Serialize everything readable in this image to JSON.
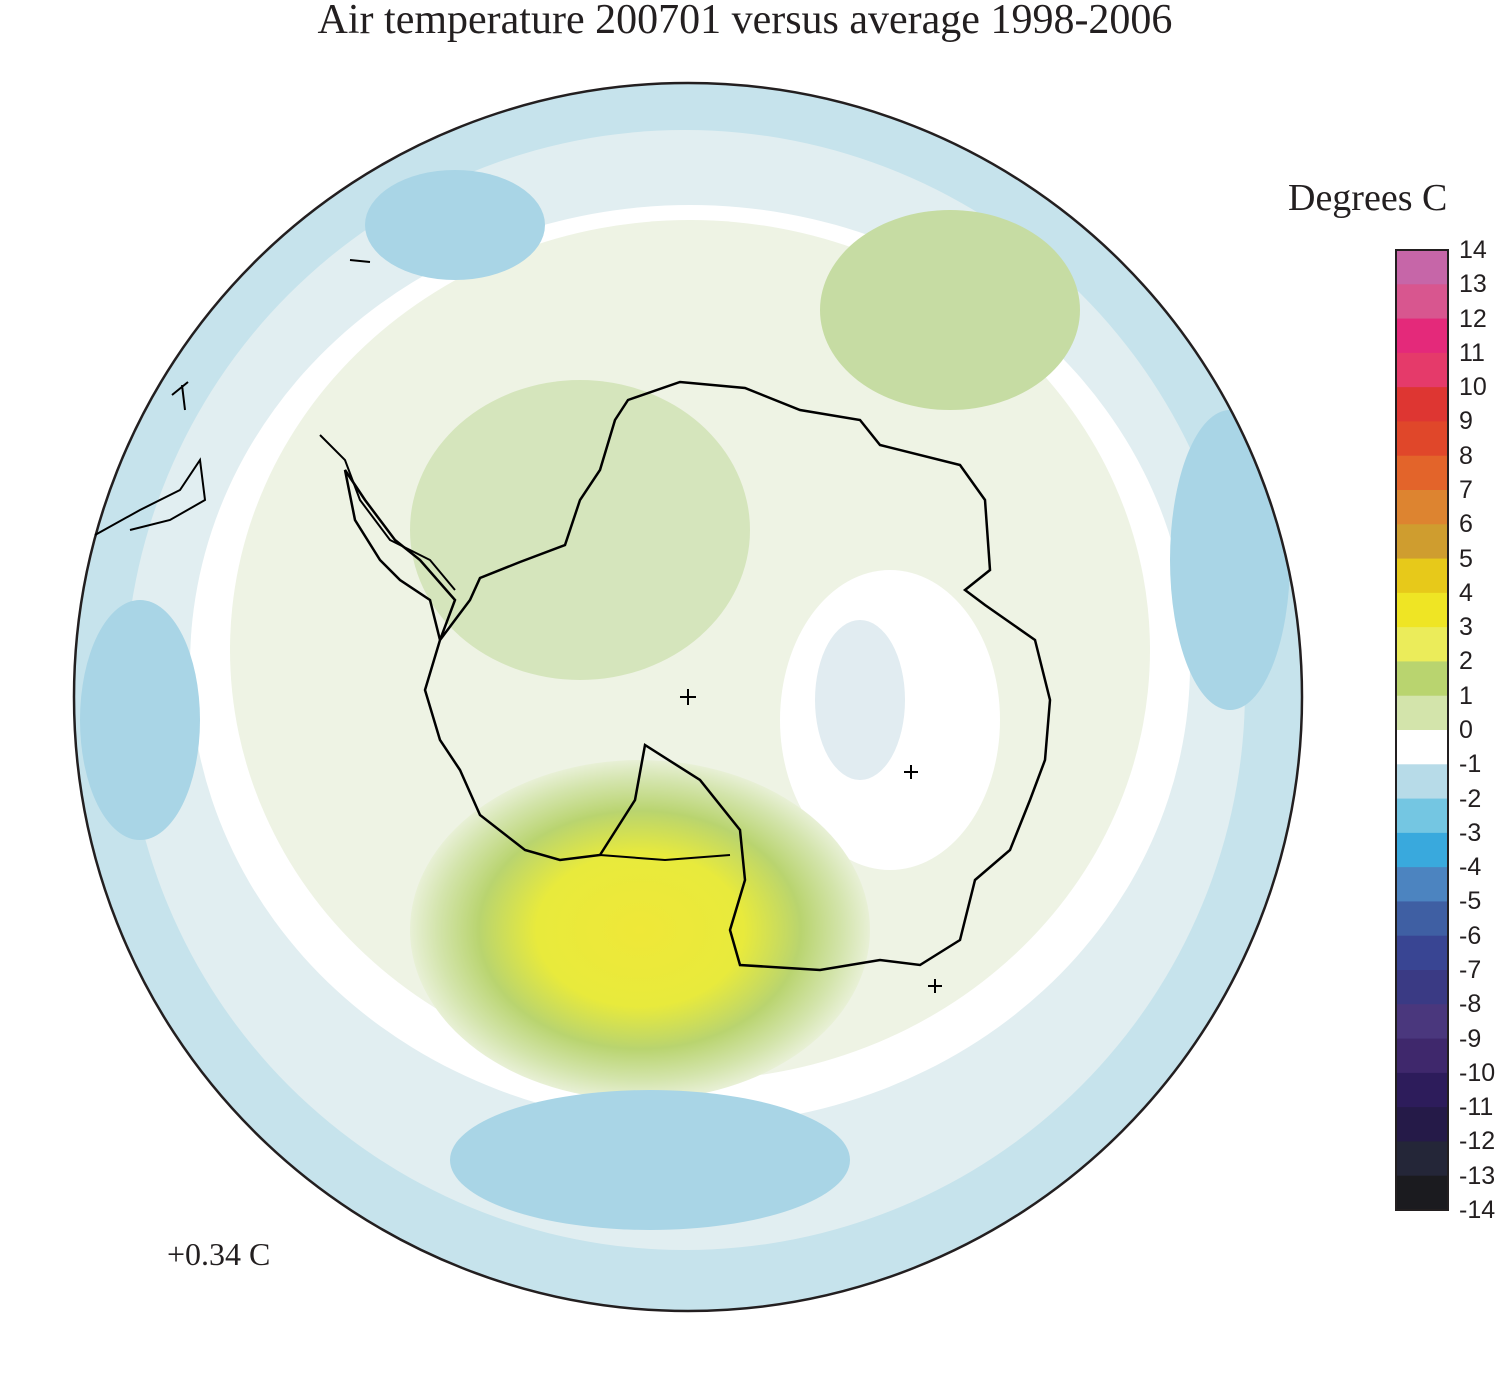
{
  "title": "Air temperature 200701 versus average 1998-2006",
  "legend": {
    "title": "Degrees C",
    "ticks": [
      "14",
      "13",
      "12",
      "11",
      "10",
      "9",
      "8",
      "7",
      "6",
      "5",
      "4",
      "3",
      "2",
      "1",
      "0",
      "-1",
      "-2",
      "-3",
      "-4",
      "-5",
      "-6",
      "-7",
      "-8",
      "-9",
      "-10",
      "-11",
      "-12",
      "-13",
      "-14"
    ],
    "colors": [
      "#c666a8",
      "#d8568f",
      "#e4297a",
      "#e53a6a",
      "#de3632",
      "#e0472a",
      "#e3642a",
      "#dd8430",
      "#cf9d2f",
      "#e7c91a",
      "#efe524",
      "#ebec5a",
      "#b9d46f",
      "#d3e4ab",
      "#ffffff",
      "#b7dbe8",
      "#74c6e2",
      "#39a9dd",
      "#4c84c0",
      "#3f5fa3",
      "#394593",
      "#3a3a84",
      "#4a377d",
      "#3f286c",
      "#2d1c5b",
      "#251a48",
      "#242638",
      "#1b1b1f"
    ]
  },
  "mean_anomaly": "+0.34 C",
  "map": {
    "projection": "south polar stereographic",
    "features": [
      "anomaly shading",
      "coastlines",
      "station markers"
    ]
  }
}
